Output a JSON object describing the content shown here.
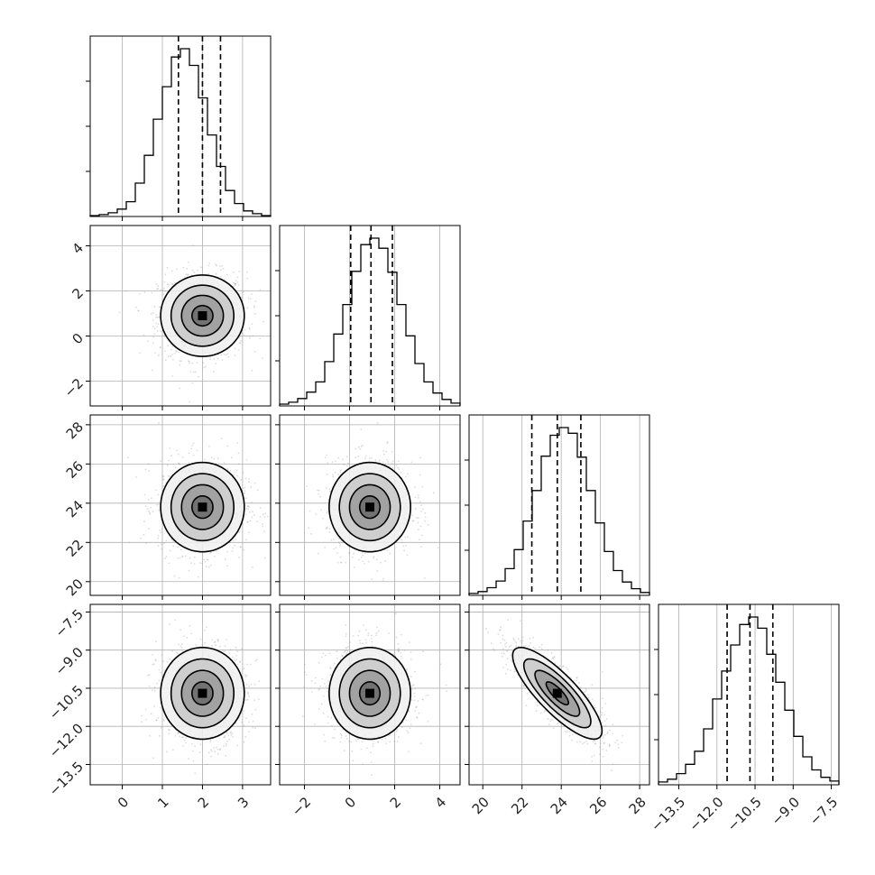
{
  "figure_type": "corner plot",
  "colors": {
    "ink": "#000000",
    "grid": "#b0b0b0",
    "points": "#9a9a9a",
    "background": "#ffffff"
  },
  "chart_data": {
    "type": "corner",
    "grid": true,
    "parameters": [
      {
        "mean": 2.0,
        "sd": 0.55,
        "range": [
          -0.8,
          3.7
        ],
        "ticks": [
          "0",
          "1",
          "2",
          "3"
        ],
        "tick_values": [
          0,
          1,
          2,
          3
        ],
        "quantiles": [
          1.4,
          2.0,
          2.45
        ]
      },
      {
        "mean": 0.9,
        "sd": 0.95,
        "range": [
          -3.1,
          4.9
        ],
        "ticks": [
          "−2",
          "0",
          "2",
          "4"
        ],
        "tick_values": [
          -2,
          0,
          2,
          4
        ],
        "quantiles": [
          0.05,
          0.95,
          1.9
        ]
      },
      {
        "mean": 23.8,
        "sd": 1.2,
        "range": [
          19.3,
          28.5
        ],
        "ticks": [
          "20",
          "22",
          "24",
          "26",
          "28"
        ],
        "tick_values": [
          20,
          22,
          24,
          26,
          28
        ],
        "quantiles": [
          22.5,
          23.8,
          25.0
        ]
      },
      {
        "mean": -10.7,
        "sd": 0.95,
        "range": [
          -14.3,
          -7.2
        ],
        "ticks": [
          "−13.5",
          "−12.0",
          "−10.5",
          "−9.0",
          "−7.5"
        ],
        "tick_values": [
          -13.5,
          -12,
          -10.5,
          -9,
          -7.5
        ],
        "quantiles": [
          -11.6,
          -10.7,
          -9.8
        ]
      }
    ],
    "correlations": [
      [
        1,
        0,
        0,
        0
      ],
      [
        0,
        1,
        0,
        0
      ],
      [
        0,
        0,
        1,
        -0.82
      ],
      [
        0,
        0,
        -0.82,
        1
      ]
    ],
    "contour_levels": [
      0.5,
      1.0,
      1.5,
      2.0
    ],
    "histograms": [
      {
        "counts": [
          1,
          2,
          4,
          8,
          16,
          36,
          66,
          105,
          140,
          172,
          181,
          163,
          128,
          88,
          54,
          28,
          14,
          6,
          3,
          1
        ]
      },
      {
        "counts": [
          2,
          4,
          8,
          15,
          26,
          48,
          78,
          110,
          146,
          175,
          182,
          171,
          145,
          110,
          76,
          46,
          26,
          14,
          7,
          3
        ]
      },
      {
        "counts": [
          2,
          4,
          8,
          15,
          28,
          48,
          78,
          110,
          146,
          168,
          176,
          170,
          145,
          110,
          76,
          46,
          26,
          14,
          7,
          3
        ]
      },
      {
        "counts": [
          3,
          6,
          12,
          22,
          36,
          60,
          92,
          122,
          150,
          172,
          180,
          168,
          140,
          110,
          80,
          52,
          30,
          16,
          8,
          4
        ]
      }
    ]
  }
}
